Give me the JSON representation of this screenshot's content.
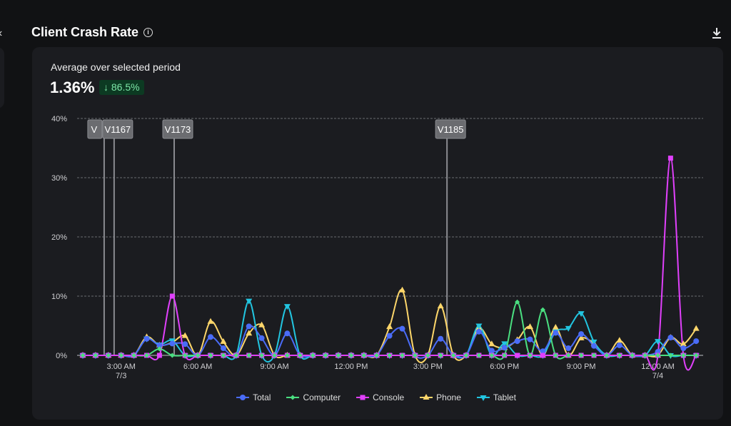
{
  "header": {
    "title": "Client Crash Rate",
    "info_icon": "info-icon",
    "download_icon": "download-icon"
  },
  "summary": {
    "label": "Average over selected period",
    "value": "1.36%",
    "change": "86.5%",
    "change_icon": "arrow-down-icon",
    "change_color": "#7de8a8"
  },
  "chart_data": {
    "type": "line",
    "ylim": [
      0,
      40
    ],
    "yticks": [
      "0%",
      "10%",
      "20%",
      "30%",
      "40%"
    ],
    "ytick_values": [
      0,
      10,
      20,
      30,
      40
    ],
    "grid": true,
    "legend_placement": "bottom",
    "x": [
      "7/3 1:30 AM",
      "2:00 AM",
      "2:30 AM",
      "3:00 AM",
      "3:30 AM",
      "4:00 AM",
      "4:30 AM",
      "5:00 AM",
      "5:30 AM",
      "6:00 AM",
      "6:30 AM",
      "7:00 AM",
      "7:30 AM",
      "8:00 AM",
      "8:30 AM",
      "9:00 AM",
      "9:30 AM",
      "10:00 AM",
      "10:30 AM",
      "11:00 AM",
      "11:30 AM",
      "12:00 PM",
      "12:30 PM",
      "1:00 PM",
      "1:30 PM",
      "2:00 PM",
      "2:30 PM",
      "3:00 PM",
      "3:30 PM",
      "4:00 PM",
      "4:30 PM",
      "5:00 PM",
      "5:30 PM",
      "6:00 PM",
      "6:30 PM",
      "7:00 PM",
      "7:30 PM",
      "8:00 PM",
      "8:30 PM",
      "9:00 PM",
      "9:30 PM",
      "10:00 PM",
      "10:30 PM",
      "11:00 PM",
      "11:30 PM",
      "7/4 12:00 AM",
      "12:30 AM",
      "1:00 AM",
      "1:30 AM"
    ],
    "xticks": [
      {
        "label": "3:00 AM",
        "sub": "7/3",
        "index": 3
      },
      {
        "label": "6:00 AM",
        "sub": "",
        "index": 9
      },
      {
        "label": "9:00 AM",
        "sub": "",
        "index": 15
      },
      {
        "label": "12:00 PM",
        "sub": "",
        "index": 21
      },
      {
        "label": "3:00 PM",
        "sub": "",
        "index": 27
      },
      {
        "label": "6:00 PM",
        "sub": "",
        "index": 33
      },
      {
        "label": "9:00 PM",
        "sub": "",
        "index": 39
      },
      {
        "label": "12:00 AM",
        "sub": "7/4",
        "index": 45
      }
    ],
    "series": [
      {
        "name": "Total",
        "color": "#4a6cf7",
        "marker": "circle",
        "values": [
          0,
          0,
          0,
          0,
          0,
          2.8,
          1.7,
          2.0,
          1.9,
          0,
          3.1,
          1.2,
          0,
          4.9,
          2.9,
          0,
          3.7,
          0,
          0,
          0,
          0,
          0,
          0,
          0,
          3.3,
          4.5,
          0,
          0,
          2.8,
          0,
          0,
          4.0,
          0.8,
          1.3,
          2.4,
          2.7,
          0.7,
          3.8,
          1.2,
          3.6,
          1.6,
          0,
          1.7,
          0,
          0,
          0.6,
          3.0,
          1.2,
          2.4
        ]
      },
      {
        "name": "Computer",
        "color": "#4ade80",
        "marker": "diamond",
        "values": [
          0,
          0,
          0,
          0,
          0,
          0,
          1.1,
          0,
          0,
          0,
          0,
          0,
          0,
          0,
          0,
          0,
          0,
          0,
          0,
          0,
          0,
          0,
          0,
          0,
          0,
          0,
          0,
          0,
          0,
          0,
          0,
          0,
          0,
          0,
          9.0,
          0,
          7.7,
          0,
          0,
          0,
          0,
          0,
          0,
          0,
          0,
          0,
          0,
          0,
          0
        ]
      },
      {
        "name": "Console",
        "color": "#e040fb",
        "marker": "square",
        "values": [
          0,
          0,
          0,
          0,
          0,
          0,
          0,
          10.0,
          0,
          0,
          0,
          0,
          0,
          0,
          0,
          0,
          0,
          0,
          0,
          0,
          0,
          0,
          0,
          0,
          0,
          0,
          0,
          0,
          0,
          0,
          0,
          0,
          0,
          0,
          0,
          0,
          0,
          0,
          0,
          0,
          0,
          0,
          0,
          0,
          0,
          0,
          33.3,
          0,
          0
        ]
      },
      {
        "name": "Phone",
        "color": "#fcd66a",
        "marker": "triangle-up",
        "values": [
          0,
          0,
          0,
          0,
          0,
          3.1,
          1.7,
          2.2,
          3.3,
          0,
          5.7,
          2.3,
          0,
          3.7,
          5.1,
          0,
          0,
          0,
          0,
          0,
          0,
          0,
          0,
          0,
          4.8,
          11.0,
          0,
          0,
          8.3,
          0,
          0,
          4.6,
          1.9,
          1.3,
          2.6,
          4.8,
          0,
          4.7,
          0,
          2.9,
          2.0,
          0,
          2.5,
          0,
          0,
          0,
          3.0,
          1.9,
          4.5
        ]
      },
      {
        "name": "Tablet",
        "color": "#22c5e0",
        "marker": "triangle-down",
        "values": [
          0,
          0,
          0,
          0,
          0,
          2.8,
          1.8,
          2.5,
          0,
          0,
          0,
          0,
          0,
          9.2,
          0,
          0,
          8.3,
          0,
          0,
          0,
          0,
          0,
          0,
          0,
          0,
          0,
          0,
          0,
          0,
          0,
          0,
          5.0,
          0,
          2.0,
          0,
          0,
          0,
          4.0,
          4.6,
          7.1,
          2.3,
          0,
          0,
          0,
          0,
          2.4,
          0,
          0,
          0
        ]
      }
    ],
    "annotations": [
      {
        "label": "V",
        "time_index": 1.67
      },
      {
        "label": "V1167",
        "time_index": 2.45
      },
      {
        "label": "V1173",
        "time_index": 7.15
      },
      {
        "label": "V1185",
        "time_index": 28.5
      }
    ]
  }
}
